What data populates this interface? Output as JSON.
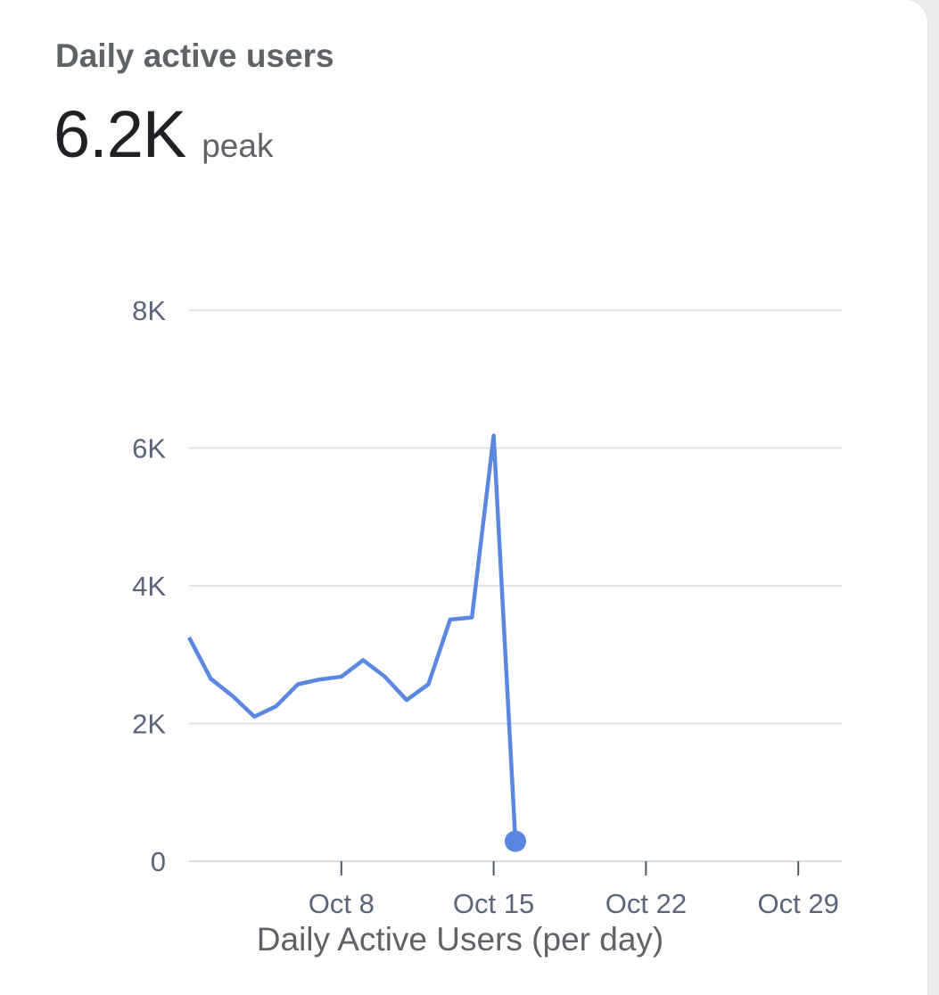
{
  "card": {
    "title": "Daily active users",
    "metric_value": "6.2K",
    "metric_suffix": "peak"
  },
  "colors": {
    "series": "#5b87e0",
    "grid": "#e3e3e3",
    "axis_text": "#5b6478"
  },
  "chart_data": {
    "type": "line",
    "title": "",
    "xlabel": "Daily Active Users (per day)",
    "ylabel": "",
    "ylim": [
      0,
      8000
    ],
    "yticks": [
      {
        "value": 0,
        "label": "0"
      },
      {
        "value": 2000,
        "label": "2K"
      },
      {
        "value": 4000,
        "label": "4K"
      },
      {
        "value": 6000,
        "label": "6K"
      },
      {
        "value": 8000,
        "label": "8K"
      }
    ],
    "xlim": [
      "2023-10-01",
      "2023-10-31"
    ],
    "xticks": [
      {
        "value": "2023-10-08",
        "label": "Oct 8"
      },
      {
        "value": "2023-10-15",
        "label": "Oct 15"
      },
      {
        "value": "2023-10-22",
        "label": "Oct 22"
      },
      {
        "value": "2023-10-29",
        "label": "Oct 29"
      }
    ],
    "grid": true,
    "legend": "none",
    "series": [
      {
        "points": [
          {
            "x": "2023-10-01",
            "y": 3250
          },
          {
            "x": "2023-10-02",
            "y": 2650
          },
          {
            "x": "2023-10-03",
            "y": 2400
          },
          {
            "x": "2023-10-04",
            "y": 2100
          },
          {
            "x": "2023-10-05",
            "y": 2250
          },
          {
            "x": "2023-10-06",
            "y": 2570
          },
          {
            "x": "2023-10-07",
            "y": 2640
          },
          {
            "x": "2023-10-08",
            "y": 2680
          },
          {
            "x": "2023-10-09",
            "y": 2920
          },
          {
            "x": "2023-10-10",
            "y": 2680
          },
          {
            "x": "2023-10-11",
            "y": 2340
          },
          {
            "x": "2023-10-12",
            "y": 2570
          },
          {
            "x": "2023-10-13",
            "y": 3510
          },
          {
            "x": "2023-10-14",
            "y": 3540
          },
          {
            "x": "2023-10-15",
            "y": 6180
          },
          {
            "x": "2023-10-16",
            "y": 290
          }
        ],
        "last_point_marker": true
      }
    ]
  }
}
